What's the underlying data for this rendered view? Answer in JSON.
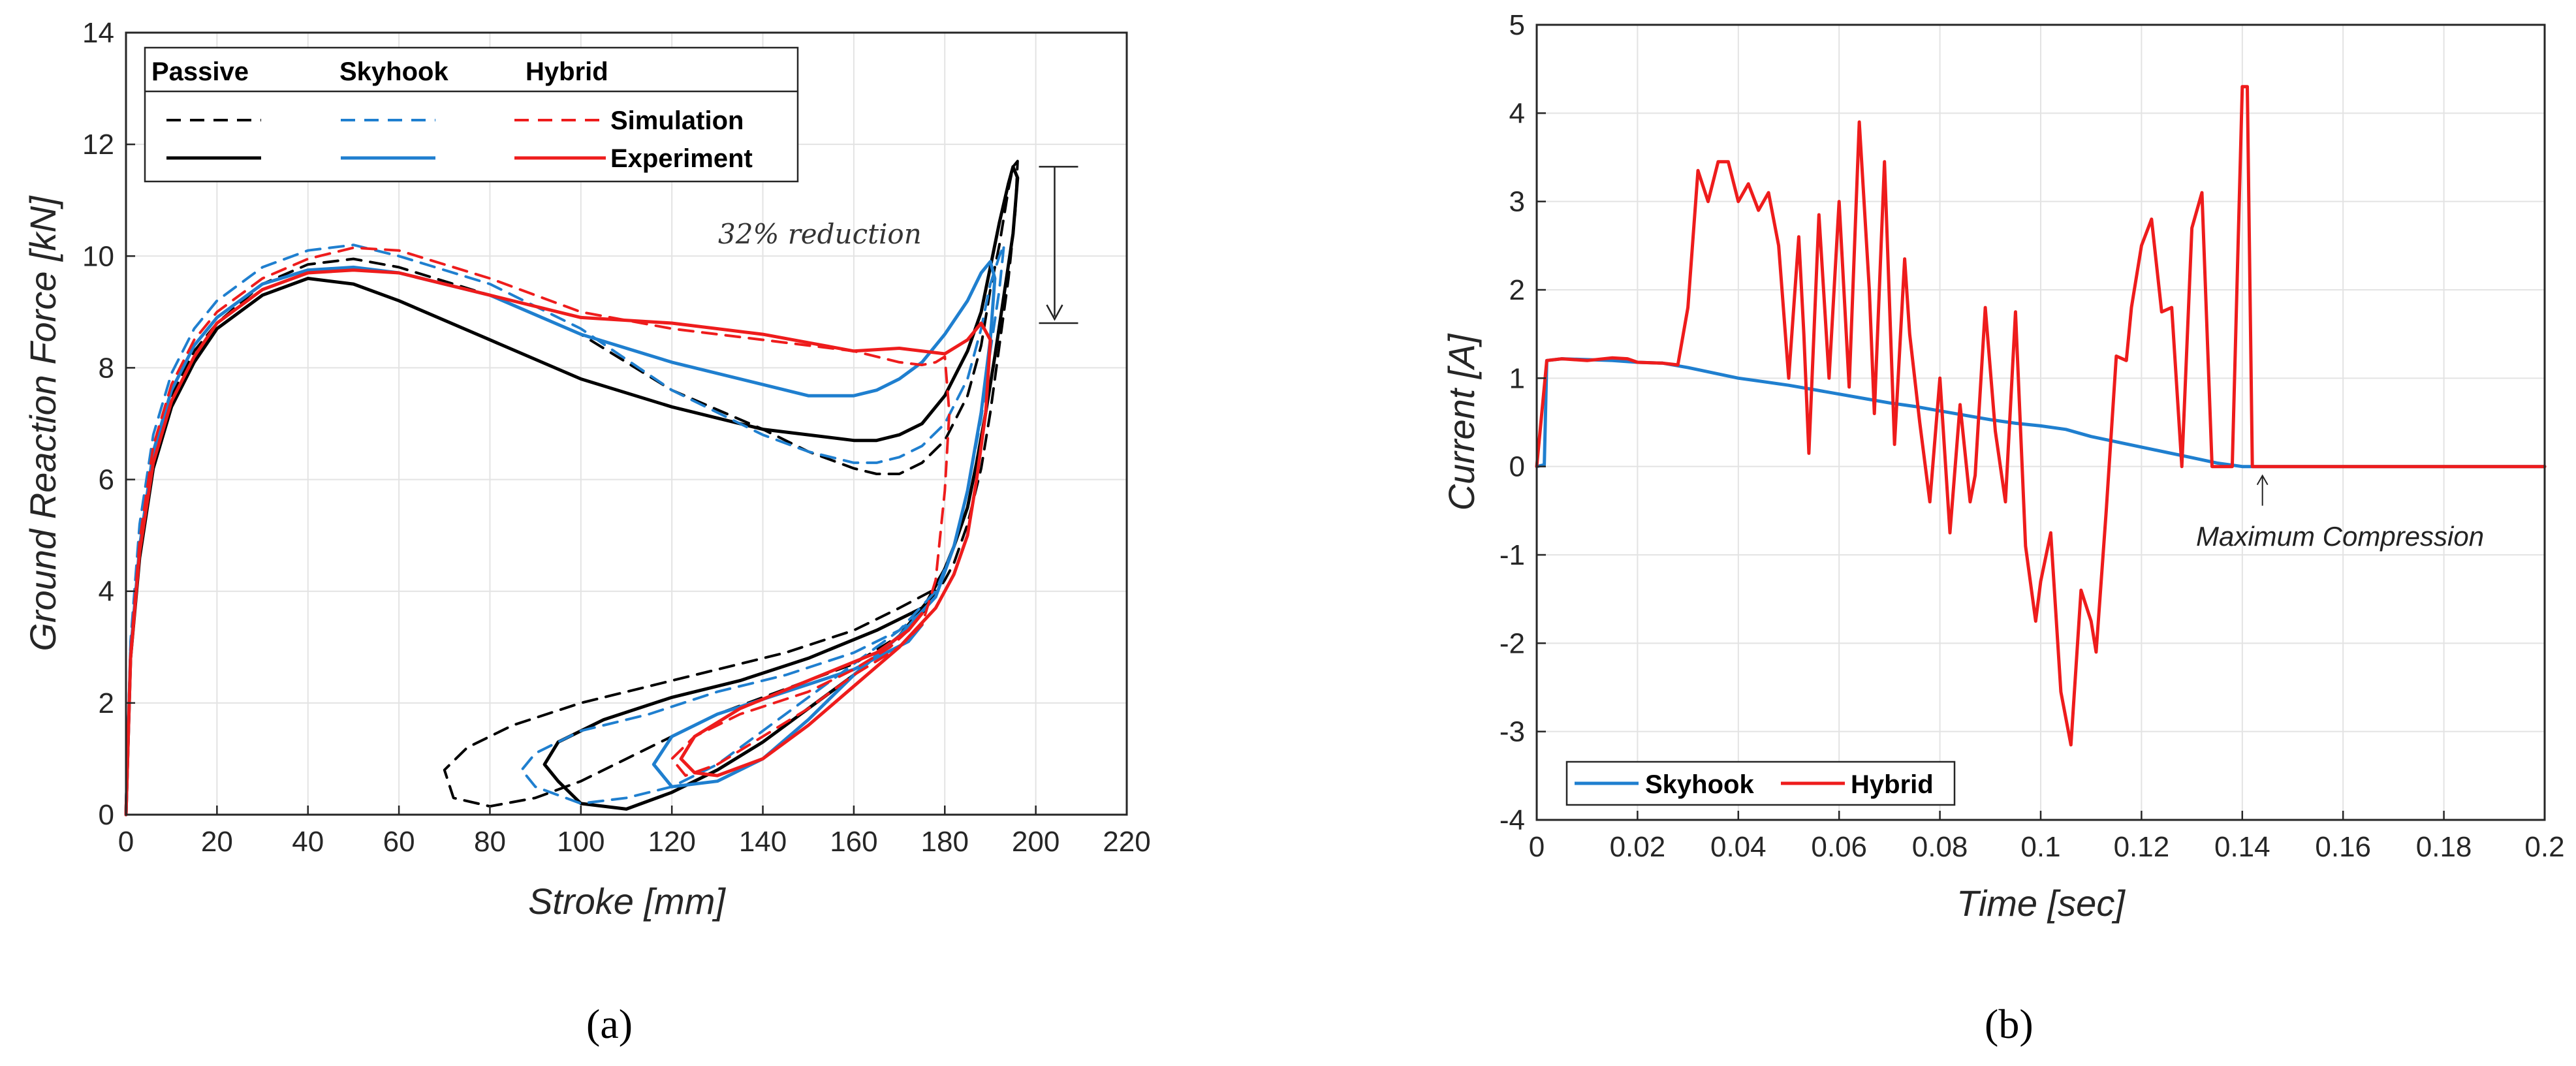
{
  "chart_data": [
    {
      "type": "line",
      "panel_label": "(a)",
      "xlabel": "Stroke [mm]",
      "ylabel": "Ground Reaction Force [kN]",
      "xlim": [
        0,
        220
      ],
      "ylim": [
        0,
        14
      ],
      "xticks": [
        "0",
        "20",
        "40",
        "60",
        "80",
        "100",
        "120",
        "140",
        "160",
        "180",
        "200",
        "220"
      ],
      "yticks": [
        "0",
        "2",
        "4",
        "6",
        "8",
        "10",
        "12",
        "14"
      ],
      "grid": true,
      "legend": {
        "placement": "top-left",
        "columns": [
          "Passive",
          "Skyhook",
          "Hybrid"
        ],
        "rows": [
          "Simulation",
          "Experiment"
        ]
      },
      "annotation": "32% reduction",
      "annotation_arrow": {
        "x": 205,
        "y_from": 11.6,
        "y_to": 8.8
      },
      "colors": {
        "Passive": "#000000",
        "Skyhook": "#1f7fcf",
        "Hybrid": "#ee1c1c"
      },
      "series": [
        {
          "group": "Passive",
          "kind": "Simulation",
          "dashed": true,
          "x": [
            0,
            1,
            3,
            6,
            10,
            15,
            20,
            30,
            40,
            50,
            60,
            80,
            100,
            120,
            140,
            150,
            160,
            165,
            170,
            175,
            180,
            185,
            188,
            190,
            192,
            194,
            195,
            196,
            195.5,
            194,
            192,
            190,
            188,
            185,
            182,
            180,
            175,
            170,
            160,
            150,
            140,
            130,
            120,
            110,
            100,
            90,
            80,
            72,
            70,
            75,
            85,
            100,
            115,
            130,
            145,
            160,
            170,
            177,
            180
          ],
          "y": [
            0,
            3,
            4.8,
            6.3,
            7.5,
            8.3,
            8.8,
            9.5,
            9.85,
            9.95,
            9.8,
            9.3,
            8.6,
            7.6,
            6.9,
            6.5,
            6.2,
            6.1,
            6.1,
            6.3,
            6.7,
            7.5,
            8.4,
            9.4,
            10.2,
            11.2,
            11.6,
            11.7,
            10.8,
            9.6,
            8.4,
            7.2,
            6.2,
            5.2,
            4.5,
            4.2,
            3.6,
            3.2,
            2.7,
            2.4,
            2.1,
            1.8,
            1.4,
            1.0,
            0.6,
            0.3,
            0.15,
            0.3,
            0.8,
            1.2,
            1.6,
            2.0,
            2.3,
            2.6,
            2.9,
            3.3,
            3.7,
            4.0,
            4.4
          ]
        },
        {
          "group": "Passive",
          "kind": "Experiment",
          "dashed": false,
          "x": [
            0,
            1,
            3,
            6,
            10,
            15,
            20,
            30,
            40,
            50,
            60,
            80,
            100,
            120,
            140,
            150,
            160,
            165,
            170,
            175,
            180,
            185,
            188,
            190,
            192,
            194,
            195,
            196,
            195,
            193,
            191,
            189,
            187,
            185,
            182,
            180,
            176,
            170,
            160,
            150,
            140,
            130,
            120,
            110,
            100,
            95,
            92,
            95,
            105,
            120,
            135,
            150,
            165,
            175,
            178
          ],
          "y": [
            0,
            2.8,
            4.6,
            6.2,
            7.3,
            8.1,
            8.7,
            9.3,
            9.6,
            9.5,
            9.2,
            8.5,
            7.8,
            7.3,
            6.9,
            6.8,
            6.7,
            6.7,
            6.8,
            7.0,
            7.5,
            8.3,
            9.0,
            9.8,
            10.6,
            11.3,
            11.6,
            11.4,
            10.4,
            9.3,
            8.2,
            7.2,
            6.3,
            5.5,
            4.8,
            4.4,
            3.8,
            3.2,
            2.5,
            1.9,
            1.3,
            0.8,
            0.4,
            0.1,
            0.2,
            0.6,
            0.9,
            1.3,
            1.7,
            2.1,
            2.4,
            2.8,
            3.3,
            3.7,
            4.0
          ]
        },
        {
          "group": "Skyhook",
          "kind": "Simulation",
          "dashed": true,
          "x": [
            0,
            1,
            3,
            6,
            10,
            15,
            20,
            30,
            40,
            50,
            60,
            80,
            100,
            120,
            140,
            150,
            160,
            165,
            170,
            175,
            180,
            185,
            188,
            190,
            192,
            193,
            192,
            190,
            188,
            185,
            182,
            178,
            170,
            160,
            150,
            140,
            130,
            120,
            110,
            100,
            90,
            87,
            90,
            100,
            115,
            130,
            145,
            160,
            170,
            176
          ],
          "y": [
            0,
            3.1,
            5.2,
            6.8,
            7.9,
            8.7,
            9.2,
            9.8,
            10.1,
            10.2,
            10.0,
            9.5,
            8.7,
            7.6,
            6.8,
            6.5,
            6.3,
            6.3,
            6.4,
            6.6,
            7.0,
            7.8,
            8.7,
            9.5,
            10.0,
            10.2,
            9.4,
            8.3,
            7.1,
            5.8,
            4.8,
            4.0,
            3.3,
            2.7,
            2.1,
            1.5,
            0.9,
            0.5,
            0.3,
            0.2,
            0.5,
            0.8,
            1.1,
            1.5,
            1.8,
            2.2,
            2.5,
            2.9,
            3.3,
            3.7
          ]
        },
        {
          "group": "Skyhook",
          "kind": "Experiment",
          "dashed": false,
          "x": [
            0,
            1,
            3,
            6,
            10,
            15,
            20,
            30,
            40,
            50,
            60,
            80,
            100,
            120,
            140,
            150,
            160,
            165,
            170,
            175,
            180,
            185,
            188,
            190,
            191,
            190,
            188,
            185,
            182,
            178,
            170,
            160,
            150,
            140,
            130,
            120,
            116,
            120,
            130,
            145,
            160,
            172,
            175
          ],
          "y": [
            0,
            2.9,
            4.8,
            6.5,
            7.6,
            8.4,
            8.9,
            9.5,
            9.75,
            9.8,
            9.7,
            9.3,
            8.6,
            8.1,
            7.7,
            7.5,
            7.5,
            7.6,
            7.8,
            8.1,
            8.6,
            9.2,
            9.7,
            9.9,
            9.6,
            8.5,
            7.2,
            5.8,
            4.8,
            3.9,
            3.2,
            2.5,
            1.7,
            1.0,
            0.6,
            0.5,
            0.9,
            1.4,
            1.8,
            2.2,
            2.6,
            3.1,
            3.4
          ]
        },
        {
          "group": "Hybrid",
          "kind": "Simulation",
          "dashed": true,
          "x": [
            0,
            1,
            3,
            6,
            10,
            15,
            20,
            30,
            40,
            50,
            60,
            80,
            100,
            120,
            140,
            160,
            170,
            175,
            178,
            180,
            181,
            180,
            178,
            175,
            170,
            160,
            150,
            140,
            130,
            123,
            120,
            125,
            135,
            150,
            160,
            168,
            172
          ],
          "y": [
            0,
            2.9,
            4.9,
            6.6,
            7.7,
            8.5,
            9.0,
            9.6,
            9.95,
            10.15,
            10.1,
            9.6,
            9.0,
            8.7,
            8.5,
            8.3,
            8.1,
            8.05,
            8.1,
            8.2,
            7.2,
            5.8,
            4.2,
            3.4,
            3.0,
            2.5,
            1.9,
            1.4,
            0.9,
            0.7,
            1.0,
            1.4,
            1.8,
            2.2,
            2.6,
            3.0,
            3.3
          ]
        },
        {
          "group": "Hybrid",
          "kind": "Experiment",
          "dashed": false,
          "x": [
            0,
            1,
            3,
            6,
            10,
            15,
            20,
            30,
            40,
            50,
            60,
            80,
            100,
            120,
            140,
            150,
            160,
            170,
            180,
            185,
            188,
            190,
            189,
            187,
            185,
            182,
            178,
            170,
            160,
            150,
            140,
            130,
            125,
            122,
            125,
            135,
            150,
            165,
            172,
            175
          ],
          "y": [
            0,
            2.8,
            4.7,
            6.3,
            7.4,
            8.2,
            8.8,
            9.4,
            9.7,
            9.75,
            9.7,
            9.3,
            8.9,
            8.8,
            8.6,
            8.45,
            8.3,
            8.35,
            8.25,
            8.5,
            8.8,
            8.5,
            7.2,
            6.0,
            5.0,
            4.3,
            3.7,
            3.0,
            2.3,
            1.6,
            1.0,
            0.7,
            0.75,
            1.0,
            1.4,
            1.9,
            2.4,
            2.9,
            3.3,
            3.6
          ]
        }
      ]
    },
    {
      "type": "line",
      "panel_label": "(b)",
      "xlabel": "Time [sec]",
      "ylabel": "Current [A]",
      "xlim": [
        0,
        0.2
      ],
      "ylim": [
        -4,
        5
      ],
      "xticks": [
        "0",
        "0.02",
        "0.04",
        "0.06",
        "0.08",
        "0.1",
        "0.12",
        "0.14",
        "0.16",
        "0.18",
        "0.2"
      ],
      "yticks": [
        "-4",
        "-3",
        "-2",
        "-1",
        "0",
        "1",
        "2",
        "3",
        "4",
        "5"
      ],
      "grid": true,
      "legend": {
        "placement": "bottom-left",
        "entries": [
          "Skyhook",
          "Hybrid"
        ]
      },
      "annotation": "Maximum Compression",
      "annotation_point": {
        "x": 0.144,
        "y": 0
      },
      "series": [
        {
          "name": "Skyhook",
          "color": "#1f7fcf",
          "x": [
            0,
            0.0015,
            0.002,
            0.005,
            0.01,
            0.015,
            0.02,
            0.025,
            0.03,
            0.035,
            0.04,
            0.045,
            0.05,
            0.055,
            0.06,
            0.065,
            0.07,
            0.075,
            0.08,
            0.085,
            0.09,
            0.095,
            0.1,
            0.105,
            0.11,
            0.115,
            0.12,
            0.125,
            0.13,
            0.135,
            0.14,
            0.145,
            0.15,
            0.16,
            0.17,
            0.18,
            0.19,
            0.2
          ],
          "y": [
            0,
            0.02,
            1.2,
            1.22,
            1.21,
            1.2,
            1.18,
            1.17,
            1.12,
            1.06,
            1.0,
            0.96,
            0.92,
            0.87,
            0.82,
            0.77,
            0.72,
            0.68,
            0.63,
            0.58,
            0.53,
            0.49,
            0.46,
            0.42,
            0.34,
            0.28,
            0.22,
            0.16,
            0.1,
            0.04,
            0.0,
            0.0,
            0.0,
            0.0,
            0.0,
            0.0,
            0.0,
            0.0
          ]
        },
        {
          "name": "Hybrid",
          "color": "#ee1c1c",
          "x": [
            0,
            0.002,
            0.005,
            0.01,
            0.015,
            0.018,
            0.02,
            0.025,
            0.028,
            0.03,
            0.032,
            0.034,
            0.036,
            0.038,
            0.04,
            0.042,
            0.044,
            0.046,
            0.048,
            0.05,
            0.052,
            0.053,
            0.054,
            0.056,
            0.058,
            0.06,
            0.062,
            0.064,
            0.066,
            0.067,
            0.069,
            0.071,
            0.073,
            0.074,
            0.076,
            0.078,
            0.08,
            0.082,
            0.084,
            0.086,
            0.087,
            0.089,
            0.091,
            0.093,
            0.095,
            0.097,
            0.099,
            0.1,
            0.102,
            0.104,
            0.106,
            0.108,
            0.11,
            0.111,
            0.113,
            0.115,
            0.117,
            0.118,
            0.12,
            0.122,
            0.124,
            0.126,
            0.128,
            0.13,
            0.132,
            0.134,
            0.136,
            0.138,
            0.14,
            0.141,
            0.142,
            0.143,
            0.1435,
            0.144,
            0.145,
            0.15,
            0.16,
            0.17,
            0.18,
            0.19,
            0.2
          ],
          "y": [
            0,
            1.2,
            1.22,
            1.2,
            1.23,
            1.22,
            1.18,
            1.17,
            1.15,
            1.8,
            3.35,
            3.0,
            3.45,
            3.45,
            3.0,
            3.2,
            2.9,
            3.1,
            2.5,
            1.0,
            2.6,
            1.5,
            0.15,
            2.85,
            1.0,
            3.0,
            0.9,
            3.9,
            2.0,
            0.6,
            3.45,
            0.25,
            2.35,
            1.5,
            0.5,
            -0.4,
            1.0,
            -0.75,
            0.7,
            -0.4,
            -0.1,
            1.8,
            0.4,
            -0.4,
            1.75,
            -0.9,
            -1.75,
            -1.3,
            -0.75,
            -2.55,
            -3.15,
            -1.4,
            -1.75,
            -2.1,
            -0.5,
            1.25,
            1.2,
            1.8,
            2.5,
            2.8,
            1.75,
            1.8,
            0.0,
            2.7,
            3.1,
            0.0,
            0.0,
            0.0,
            4.3,
            4.3,
            0.0,
            0.0,
            0.0,
            0.0,
            0.0,
            0.0,
            0.0,
            0.0,
            0.0,
            0.0,
            0.0
          ]
        }
      ]
    }
  ]
}
